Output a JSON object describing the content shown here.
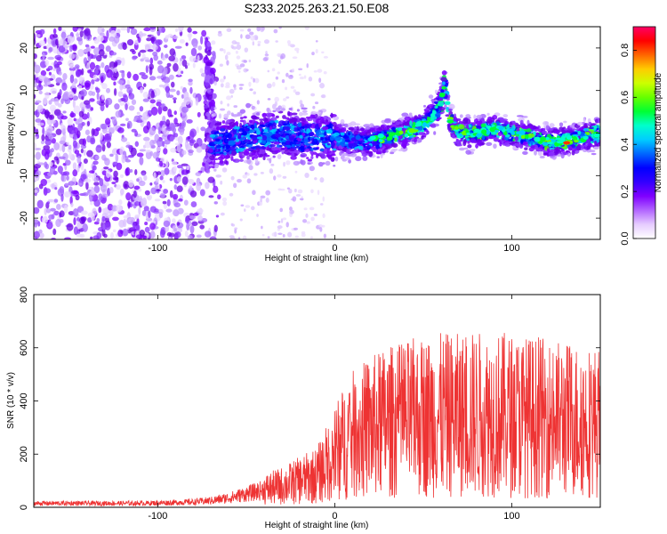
{
  "title": "S233.2025.263.21.50.E08",
  "chart_data": [
    {
      "type": "heatmap",
      "xlabel": "Height of straight line (km)",
      "ylabel": "Frequency (Hz)",
      "xlim": [
        -170,
        150
      ],
      "ylim": [
        -25,
        25
      ],
      "xticks": [
        -100,
        0,
        100
      ],
      "yticks": [
        -20,
        -10,
        0,
        10,
        20
      ],
      "grid": false,
      "colorbar": {
        "label": "Normalized spectral amplitude",
        "range": [
          0,
          0.9
        ],
        "ticks": [
          0.0,
          0.2,
          0.4,
          0.6,
          0.8
        ],
        "colors": [
          "#ffffff",
          "#e6ccff",
          "#b266ff",
          "#7f00ff",
          "#3300ff",
          "#0000ff",
          "#0066ff",
          "#00ccff",
          "#00ffcc",
          "#00ff33",
          "#66ff00",
          "#ccff00",
          "#ffcc00",
          "#ff6600",
          "#ff0000",
          "#ff0066"
        ]
      },
      "ridge": {
        "x": [
          -70,
          -60,
          -50,
          -40,
          -30,
          -20,
          -10,
          0,
          10,
          20,
          30,
          40,
          50,
          55,
          60,
          62,
          65,
          70,
          80,
          90,
          100,
          110,
          120,
          130,
          140,
          150
        ],
        "freq": [
          -2,
          -2,
          -1,
          -1,
          0,
          -1,
          -1,
          -1,
          -2,
          -2,
          -1,
          0,
          2,
          4,
          7,
          12,
          3,
          0,
          0,
          1,
          0,
          -1,
          -2,
          -2,
          -1,
          0
        ]
      }
    },
    {
      "type": "line",
      "xlabel": "Height of straight line (km)",
      "ylabel": "SNR (10 * v/v)",
      "xlim": [
        -170,
        150
      ],
      "ylim": [
        0,
        800
      ],
      "xticks": [
        -100,
        0,
        100
      ],
      "yticks": [
        0,
        200,
        400,
        600,
        800
      ],
      "grid": false,
      "series": [
        {
          "color": "#ee3333",
          "x": [
            -170,
            -150,
            -130,
            -110,
            -90,
            -80,
            -70,
            -60,
            -50,
            -40,
            -30,
            -20,
            -10,
            -5,
            0,
            5,
            10,
            20,
            30,
            40,
            50,
            60,
            70,
            80,
            90,
            100,
            110,
            120,
            130,
            140,
            150
          ],
          "values": [
            15,
            15,
            15,
            15,
            18,
            20,
            25,
            35,
            50,
            65,
            80,
            100,
            120,
            160,
            200,
            240,
            270,
            300,
            320,
            330,
            340,
            345,
            345,
            350,
            350,
            345,
            340,
            335,
            330,
            325,
            320
          ]
        }
      ]
    }
  ]
}
